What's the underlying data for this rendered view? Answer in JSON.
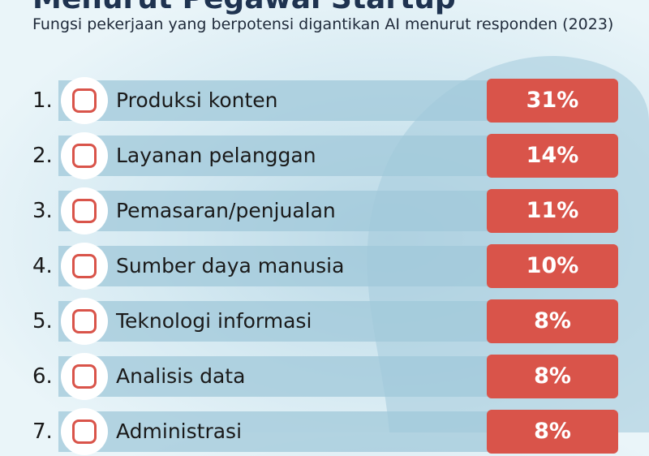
{
  "header": {
    "title": "Menurut Pegawai Startup",
    "subtitle": "Fungsi pekerjaan yang berpotensi digantikan AI menurut responden (2023)"
  },
  "items": [
    {
      "rank": "1.",
      "label": "Produksi konten",
      "value": "31%"
    },
    {
      "rank": "2.",
      "label": "Layanan pelanggan",
      "value": "14%"
    },
    {
      "rank": "3.",
      "label": "Pemasaran/penjualan",
      "value": "11%"
    },
    {
      "rank": "4.",
      "label": "Sumber daya manusia",
      "value": "10%"
    },
    {
      "rank": "5.",
      "label": "Teknologi informasi",
      "value": "8%"
    },
    {
      "rank": "6.",
      "label": "Analisis data",
      "value": "8%"
    },
    {
      "rank": "7.",
      "label": "Administrasi",
      "value": "8%"
    }
  ]
}
